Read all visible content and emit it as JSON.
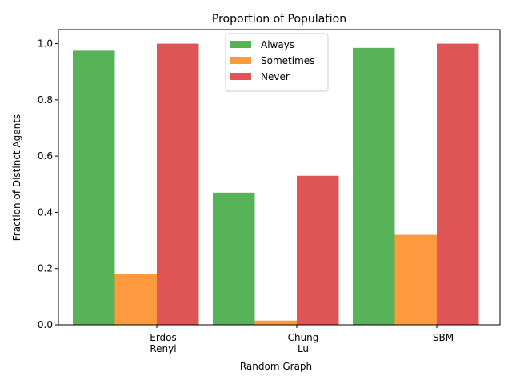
{
  "chart_data": {
    "type": "bar",
    "title": "Proportion of Population",
    "xlabel": "Random Graph",
    "ylabel": "Fraction of Distinct Agents",
    "categories": [
      [
        "Erdos",
        "Renyi"
      ],
      [
        "Chung",
        "Lu"
      ],
      [
        "SBM"
      ]
    ],
    "ylim": [
      0,
      1.05
    ],
    "yticks": [
      0.0,
      0.2,
      0.4,
      0.6,
      0.8,
      1.0
    ],
    "ytick_labels": [
      "0.0",
      "0.2",
      "0.4",
      "0.6",
      "0.8",
      "1.0"
    ],
    "legend_position": "upper center",
    "grid": false,
    "series": [
      {
        "name": "Always",
        "color": "#58b358",
        "values": [
          0.975,
          0.47,
          0.985
        ]
      },
      {
        "name": "Sometimes",
        "color": "#fd9a40",
        "values": [
          0.18,
          0.015,
          0.32
        ]
      },
      {
        "name": "Never",
        "color": "#df5456",
        "values": [
          1.0,
          0.53,
          1.0
        ]
      }
    ]
  }
}
